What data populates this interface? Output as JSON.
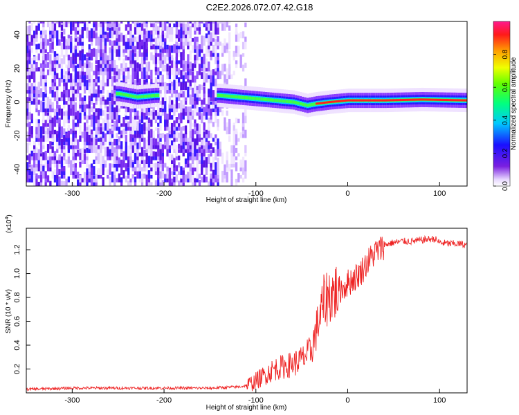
{
  "title": "C2E2.2026.072.07.42.G18",
  "chart_data": [
    {
      "type": "heatmap",
      "xlabel": "Height of straight line (km)",
      "ylabel": "Frequency (Hz)",
      "xlim": [
        -350,
        130
      ],
      "ylim": [
        -50,
        48
      ],
      "xticks": [
        -300,
        -200,
        -100,
        0,
        100
      ],
      "yticks": [
        -40,
        -20,
        0,
        20,
        40
      ],
      "colorbar": {
        "label": "Normalized spectral amplitude",
        "range": [
          0,
          1
        ],
        "ticks": [
          "0.0",
          "0.2",
          "0.4",
          "0.6",
          "0.8"
        ],
        "colormap": "rainbow (purple-blue-cyan-green-yellow-red-magenta)"
      },
      "ridge": [
        {
          "x": -250,
          "y": 5
        },
        {
          "x": -230,
          "y": 3
        },
        {
          "x": -210,
          "y": 4
        },
        {
          "x": -140,
          "y": 4
        },
        {
          "x": -120,
          "y": 3
        },
        {
          "x": -100,
          "y": 2
        },
        {
          "x": -80,
          "y": 1
        },
        {
          "x": -60,
          "y": 0
        },
        {
          "x": -45,
          "y": -2
        },
        {
          "x": -35,
          "y": -1
        },
        {
          "x": -20,
          "y": 0
        },
        {
          "x": 0,
          "y": 1
        },
        {
          "x": 40,
          "y": 1
        },
        {
          "x": 80,
          "y": 1.5
        },
        {
          "x": 130,
          "y": 1
        }
      ]
    },
    {
      "type": "line",
      "xlabel": "Height of straight line (km)",
      "ylabel": "SNR (10 * v/v)",
      "yscale_label": "(x10",
      "yscale_exp": "4",
      "xlim": [
        -350,
        130
      ],
      "ylim": [
        0,
        1.38
      ],
      "xticks": [
        -300,
        -200,
        -100,
        0,
        100
      ],
      "yticks": [
        "0.2",
        "0.4",
        "0.6",
        "0.8",
        "1.0",
        "1.2"
      ],
      "color": "#ee2222",
      "series": [
        {
          "x": [
            -350,
            -300,
            -250,
            -200,
            -150,
            -120,
            -110,
            -100,
            -90,
            -80,
            -70,
            -60,
            -50,
            -40,
            -35,
            -30,
            -25,
            -20,
            -15,
            -10,
            -5,
            0,
            5,
            10,
            15,
            20,
            25,
            30,
            35,
            40,
            50,
            60,
            70,
            80,
            90,
            95,
            100,
            110,
            120,
            130
          ],
          "values": [
            0.03,
            0.04,
            0.04,
            0.04,
            0.04,
            0.05,
            0.06,
            0.1,
            0.15,
            0.2,
            0.22,
            0.24,
            0.28,
            0.35,
            0.5,
            0.65,
            0.78,
            0.82,
            0.84,
            0.86,
            0.88,
            0.92,
            0.95,
            0.98,
            1.02,
            1.08,
            1.13,
            1.18,
            1.2,
            1.24,
            1.26,
            1.27,
            1.27,
            1.28,
            1.29,
            1.29,
            1.26,
            1.25,
            1.25,
            1.24
          ]
        }
      ]
    }
  ]
}
